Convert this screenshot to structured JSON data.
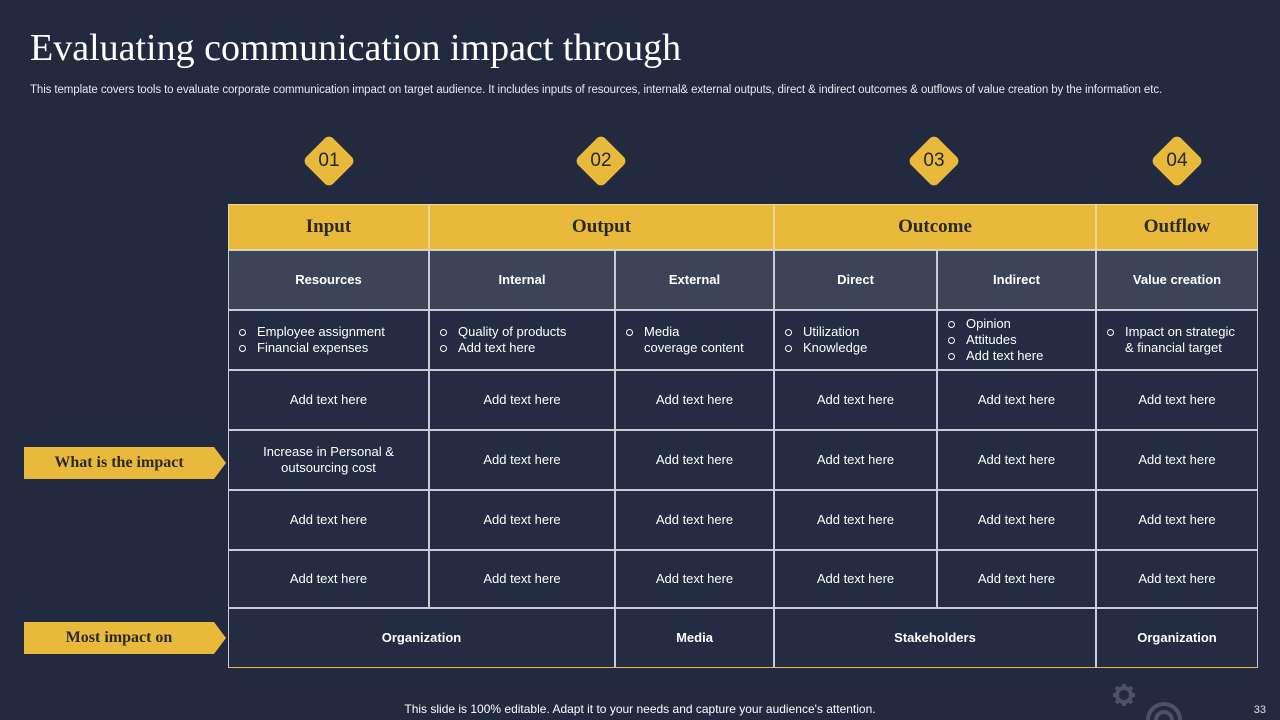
{
  "title": "Evaluating communication impact through",
  "subtitle": "This template covers tools to evaluate corporate communication impact on target audience. It includes inputs of resources, internal& external outputs, direct & indirect outcomes & outflows of value creation by the information etc.",
  "steps": [
    "01",
    "02",
    "03",
    "04"
  ],
  "headers": [
    "Input",
    "Output",
    "Outcome",
    "Outflow"
  ],
  "subheaders": [
    "Resources",
    "Internal",
    "External",
    "Direct",
    "Indirect",
    "Value creation"
  ],
  "bullets": [
    [
      "Employee assignment",
      "Financial expenses"
    ],
    [
      "Quality of products",
      "Add text here"
    ],
    [
      "Media",
      "coverage  content"
    ],
    [
      "Utilization",
      "Knowledge"
    ],
    [
      "Opinion",
      "Attitudes",
      "Add text here"
    ],
    [
      "Impact on strategic",
      "& financial target"
    ]
  ],
  "rows": [
    [
      "Add text here",
      "Add text here",
      "Add text here",
      "Add text here",
      "Add text here",
      "Add text here"
    ],
    [
      "Increase in Personal & outsourcing cost",
      "Add text here",
      "Add text here",
      "Add text here",
      "Add text here",
      "Add text here"
    ],
    [
      "Add text here",
      "Add text here",
      "Add text here",
      "Add text here",
      "Add text here",
      "Add text here"
    ],
    [
      "Add text here",
      "Add text here",
      "Add text here",
      "Add text here",
      "Add text here",
      "Add text here"
    ]
  ],
  "bottom": [
    "Organization",
    "Media",
    "Stakeholders",
    "Organization"
  ],
  "labels": {
    "impact": "What is the impact",
    "most": "Most impact on"
  },
  "footer": "This slide is 100% editable. Adapt it to your needs and capture your audience's attention.",
  "page_number": "33",
  "colors": {
    "background": "#222a40",
    "accent": "#e8b93a",
    "subheader": "#3c4558"
  }
}
